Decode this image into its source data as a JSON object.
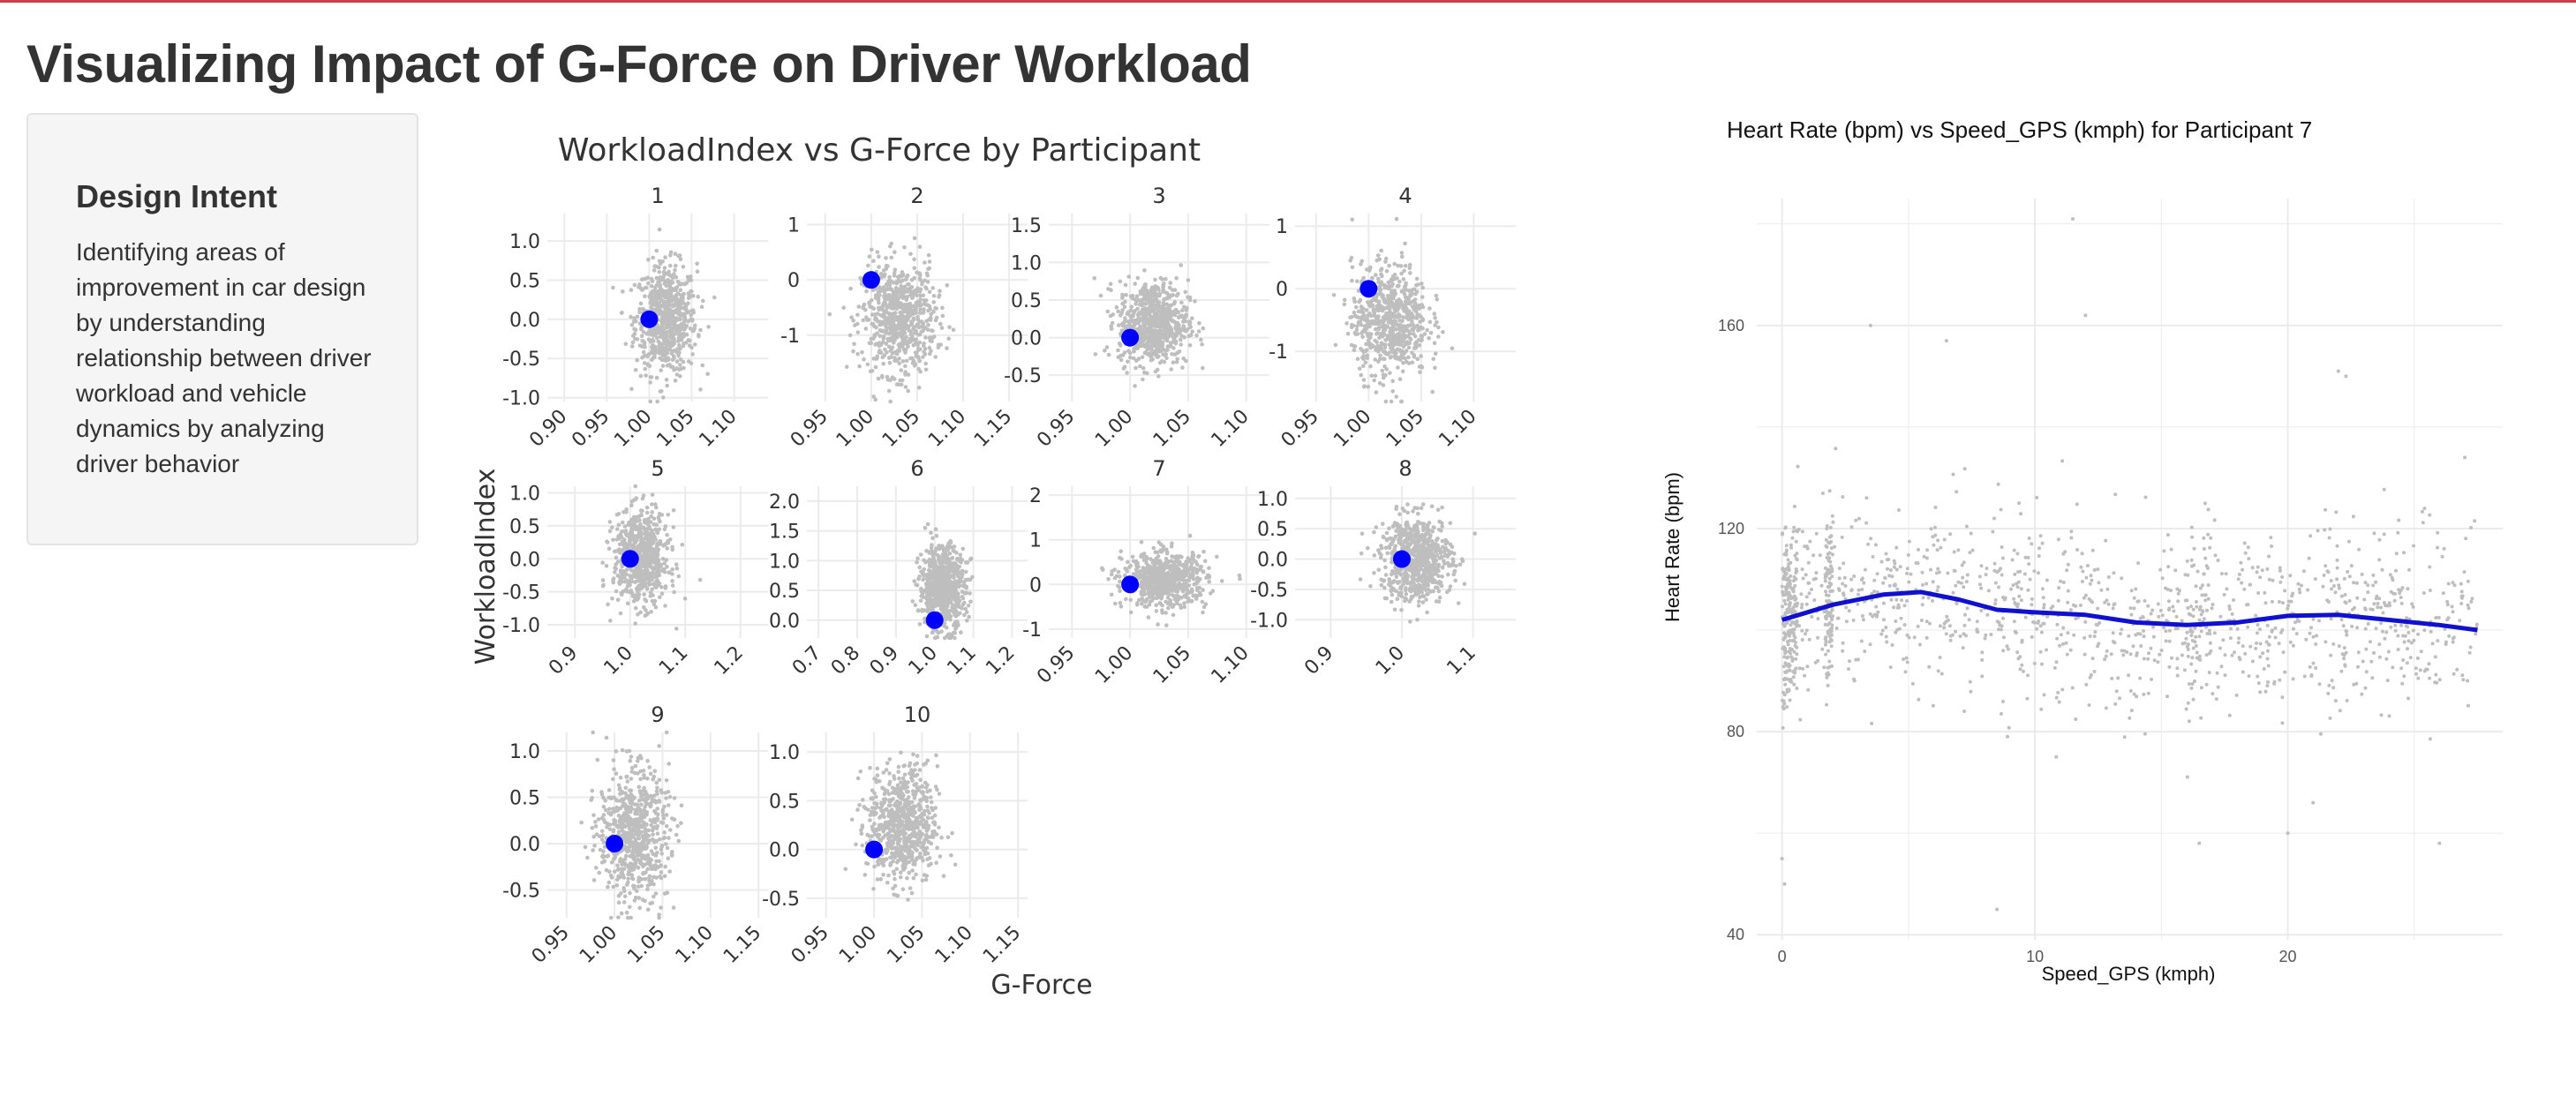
{
  "page": {
    "title": "Visualizing Impact of G-Force on Driver Workload"
  },
  "sidebar": {
    "heading": "Design Intent",
    "text": "Identifying areas of improvement in car design by understanding relationship between driver workload and vehicle dynamics by analyzing driver behavior"
  },
  "colors": {
    "accent_bar": "#c9414b",
    "points": "#bebebe",
    "highlight": "#0000ff",
    "grid": "#ebebeb",
    "smooth_line": "#1010d0"
  },
  "chart_data": [
    {
      "type": "scatter",
      "title": "WorkloadIndex vs G-Force by Participant",
      "xlabel": "G-Force",
      "ylabel": "WorkloadIndex",
      "facets": [
        {
          "label": "1",
          "xlim": [
            0.88,
            1.14
          ],
          "ylim": [
            -1.05,
            1.35
          ],
          "xticks": [
            "0.90",
            "0.95",
            "1.00",
            "1.05",
            "1.10"
          ],
          "yticks": [
            "1.0",
            "0.5",
            "0.0",
            "-0.5",
            "-1.0"
          ],
          "cloud": {
            "cx": 1.02,
            "cy": 0.0,
            "sx": 0.018,
            "sy": 0.35
          },
          "highlight": [
            1.0,
            0.0
          ]
        },
        {
          "label": "2",
          "xlim": [
            0.93,
            1.17
          ],
          "ylim": [
            -2.2,
            1.2
          ],
          "xticks": [
            "0.95",
            "1.00",
            "1.05",
            "1.10",
            "1.15"
          ],
          "yticks": [
            "1",
            "0",
            "-1"
          ],
          "cloud": {
            "cx": 1.03,
            "cy": -0.7,
            "sx": 0.02,
            "sy": 0.5
          },
          "highlight": [
            1.0,
            0.0
          ]
        },
        {
          "label": "3",
          "xlim": [
            0.93,
            1.12
          ],
          "ylim": [
            -0.85,
            1.65
          ],
          "xticks": [
            "0.95",
            "1.00",
            "1.05",
            "1.10"
          ],
          "yticks": [
            "1.5",
            "1.0",
            "0.5",
            "0.0",
            "-0.5"
          ],
          "cloud": {
            "cx": 1.02,
            "cy": 0.2,
            "sx": 0.015,
            "sy": 0.28
          },
          "highlight": [
            1.0,
            0.0
          ]
        },
        {
          "label": "4",
          "xlim": [
            0.93,
            1.14
          ],
          "ylim": [
            -1.8,
            1.2
          ],
          "xticks": [
            "0.95",
            "1.00",
            "1.05",
            "1.10"
          ],
          "yticks": [
            "1",
            "0",
            "-1"
          ],
          "cloud": {
            "cx": 1.02,
            "cy": -0.5,
            "sx": 0.018,
            "sy": 0.45
          },
          "highlight": [
            1.0,
            0.0
          ]
        },
        {
          "label": "5",
          "xlim": [
            0.85,
            1.25
          ],
          "ylim": [
            -1.2,
            1.1
          ],
          "xticks": [
            "0.9",
            "1.0",
            "1.1",
            "1.2"
          ],
          "yticks": [
            "1.0",
            "0.5",
            "0.0",
            "-0.5",
            "-1.0"
          ],
          "cloud": {
            "cx": 1.02,
            "cy": 0.0,
            "sx": 0.025,
            "sy": 0.35
          },
          "highlight": [
            1.0,
            0.0
          ]
        },
        {
          "label": "6",
          "xlim": [
            0.67,
            1.24
          ],
          "ylim": [
            -0.3,
            2.25
          ],
          "xticks": [
            "0.7",
            "0.8",
            "0.9",
            "1.0",
            "1.1",
            "1.2"
          ],
          "yticks": [
            "2.0",
            "1.5",
            "1.0",
            "0.5",
            "0.0"
          ],
          "cloud": {
            "cx": 1.02,
            "cy": 0.55,
            "sx": 0.03,
            "sy": 0.35
          },
          "highlight": [
            1.0,
            0.0
          ]
        },
        {
          "label": "7",
          "xlim": [
            0.93,
            1.12
          ],
          "ylim": [
            -1.2,
            2.2
          ],
          "xticks": [
            "0.95",
            "1.00",
            "1.05",
            "1.10"
          ],
          "yticks": [
            "2",
            "1",
            "0",
            "-1"
          ],
          "cloud": {
            "cx": 1.03,
            "cy": 0.1,
            "sx": 0.018,
            "sy": 0.3
          },
          "highlight": [
            1.0,
            0.0
          ]
        },
        {
          "label": "8",
          "xlim": [
            0.85,
            1.16
          ],
          "ylim": [
            -1.3,
            1.2
          ],
          "xticks": [
            "0.9",
            "1.0",
            "1.1"
          ],
          "yticks": [
            "1.0",
            "0.5",
            "0.0",
            "-0.5",
            "-1.0"
          ],
          "cloud": {
            "cx": 1.02,
            "cy": 0.0,
            "sx": 0.025,
            "sy": 0.35
          },
          "highlight": [
            1.0,
            0.0
          ]
        },
        {
          "label": "9",
          "xlim": [
            0.93,
            1.16
          ],
          "ylim": [
            -0.8,
            1.2
          ],
          "xticks": [
            "0.95",
            "1.00",
            "1.05",
            "1.10",
            "1.15"
          ],
          "yticks": [
            "1.0",
            "0.5",
            "0.0",
            "-0.5"
          ],
          "cloud": {
            "cx": 1.02,
            "cy": 0.1,
            "sx": 0.018,
            "sy": 0.35
          },
          "highlight": [
            1.0,
            0.0
          ]
        },
        {
          "label": "10",
          "xlim": [
            0.93,
            1.16
          ],
          "ylim": [
            -0.7,
            1.2
          ],
          "xticks": [
            "0.95",
            "1.00",
            "1.05",
            "1.10",
            "1.15"
          ],
          "yticks": [
            "1.0",
            "0.5",
            "0.0",
            "-0.5"
          ],
          "cloud": {
            "cx": 1.03,
            "cy": 0.25,
            "sx": 0.018,
            "sy": 0.3
          },
          "highlight": [
            1.0,
            0.0
          ]
        }
      ]
    },
    {
      "type": "scatter",
      "title": "Heart Rate (bpm) vs Speed_GPS (kmph) for Participant 7",
      "xlabel": "Speed_GPS (kmph)",
      "ylabel": "Heart Rate (bpm)",
      "xlim": [
        -1,
        28.5
      ],
      "ylim": [
        39,
        185
      ],
      "xticks": [
        0,
        10,
        20
      ],
      "yticks": [
        40,
        80,
        120,
        160
      ],
      "grid": true,
      "smooth": {
        "x": [
          0,
          2,
          4,
          5.5,
          7,
          8.5,
          10,
          12,
          14,
          16,
          18,
          20,
          22,
          24,
          26,
          27.5
        ],
        "y": [
          102,
          105,
          107,
          107.5,
          106,
          104,
          103.5,
          103,
          101.5,
          101,
          101.5,
          102.8,
          103,
          102,
          101,
          100
        ]
      },
      "outliers": [
        [
          11.5,
          181
        ],
        [
          12,
          162
        ],
        [
          3.5,
          160
        ],
        [
          6.5,
          157
        ],
        [
          22,
          151
        ],
        [
          22.3,
          150
        ],
        [
          8.5,
          45
        ],
        [
          0,
          55
        ],
        [
          0.1,
          50
        ],
        [
          26,
          58
        ],
        [
          16.5,
          58
        ],
        [
          20,
          60
        ],
        [
          27,
          134
        ],
        [
          21,
          66
        ]
      ]
    }
  ]
}
